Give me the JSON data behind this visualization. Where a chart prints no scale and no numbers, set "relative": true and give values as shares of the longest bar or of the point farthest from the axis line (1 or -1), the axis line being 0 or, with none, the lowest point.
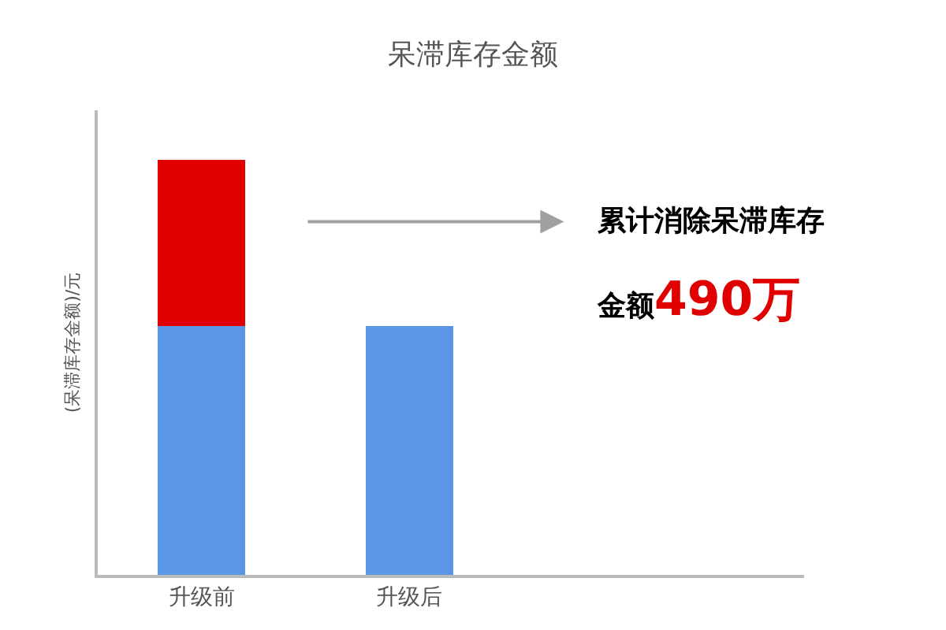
{
  "chart_data": {
    "type": "bar",
    "title": "呆滞库存金额",
    "ylabel": "(呆滞库存金额)/元",
    "categories": [
      "升级前",
      "升级后"
    ],
    "stacked": true,
    "relative": true,
    "legend": false,
    "series": [
      {
        "color": "#5b96e6",
        "values": [
          0.6,
          0.6
        ]
      },
      {
        "color": "#e00000",
        "values": [
          0.4,
          null
        ]
      }
    ],
    "annotations": [
      "累计消除呆滞库存",
      "金额490万"
    ]
  }
}
